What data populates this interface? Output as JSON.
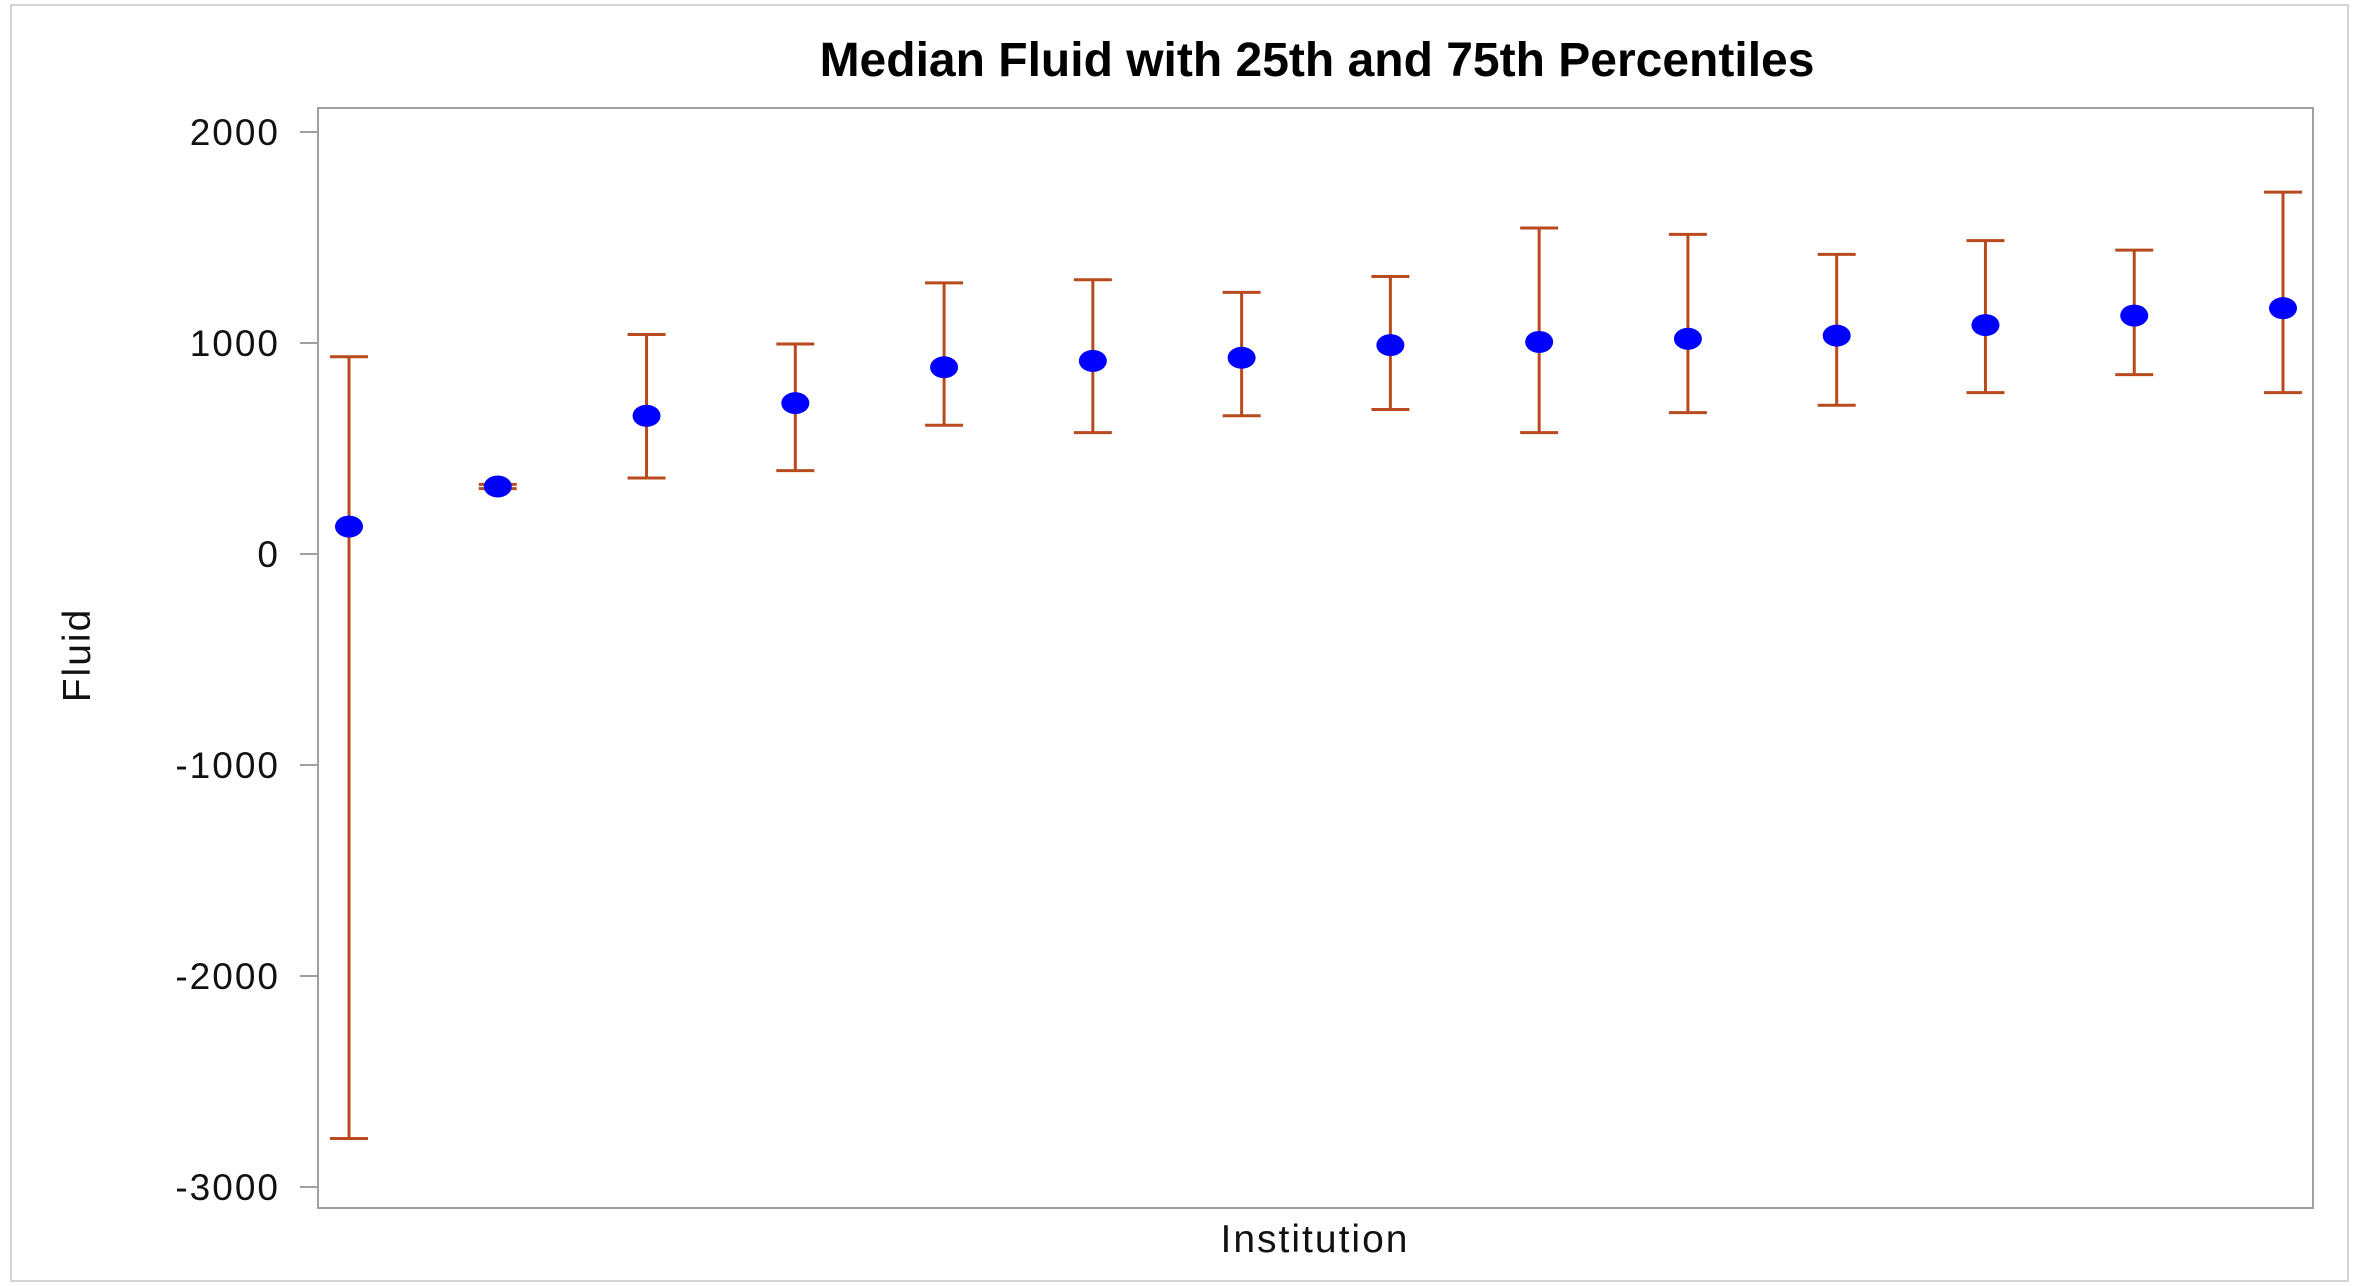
{
  "chart_data": {
    "type": "scatter",
    "title": "Median Fluid with 25th and 75th Percentiles",
    "xlabel": "Institution",
    "ylabel": "Fluid",
    "ylim": [
      -3100,
      2100
    ],
    "yticks": [
      2000,
      1000,
      0,
      -1000,
      -2000,
      -3000
    ],
    "ytick_labels": [
      "2000",
      "1000",
      "0",
      "-1000",
      "-2000",
      "-3000"
    ],
    "grid": false,
    "legend": "none",
    "series": [
      {
        "median": [
          130,
          320,
          655,
          715,
          885,
          915,
          930,
          990,
          1005,
          1020,
          1035,
          1085,
          1130,
          1165
        ],
        "p25": [
          -2770,
          310,
          360,
          395,
          610,
          575,
          655,
          685,
          575,
          670,
          705,
          765,
          850,
          765
        ],
        "p75": [
          935,
          330,
          1040,
          995,
          1285,
          1300,
          1240,
          1315,
          1545,
          1515,
          1420,
          1485,
          1440,
          1715
        ]
      }
    ],
    "colors": {
      "median": "#0000ff",
      "error_bar": "#b84a1e",
      "axis": "#a0a0a0",
      "frame": "#d4d4d4"
    }
  }
}
